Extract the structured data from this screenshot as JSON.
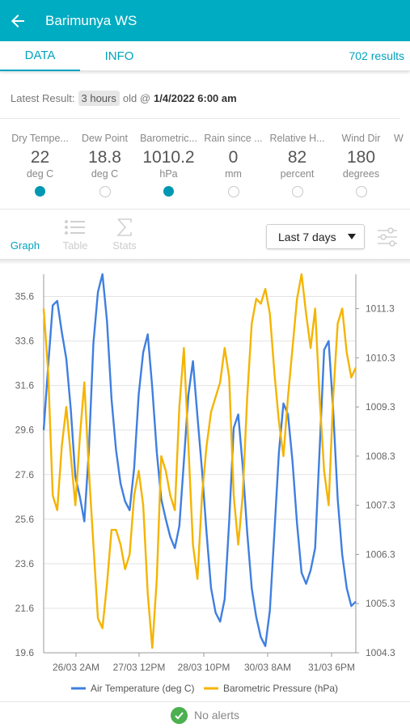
{
  "header": {
    "title": "Barimunya WS",
    "back_icon": "arrow-left-icon"
  },
  "tabs": [
    {
      "label": "DATA",
      "active": true
    },
    {
      "label": "INFO",
      "active": false
    }
  ],
  "results_count": "702 results",
  "latest": {
    "label": "Latest Result:",
    "age": "3 hours",
    "old_text": "old @",
    "datetime": "1/4/2022 6:00 am"
  },
  "variables": [
    {
      "name": "Dry Tempe...",
      "value": "22",
      "unit": "deg C",
      "selected": true
    },
    {
      "name": "Dew Point",
      "value": "18.8",
      "unit": "deg C",
      "selected": false
    },
    {
      "name": "Barometric...",
      "value": "1010.2",
      "unit": "hPa",
      "selected": true
    },
    {
      "name": "Rain since ...",
      "value": "0",
      "unit": "mm",
      "selected": false
    },
    {
      "name": "Relative H...",
      "value": "82",
      "unit": "percent",
      "selected": false
    },
    {
      "name": "Wind Dir",
      "value": "180",
      "unit": "degrees",
      "selected": false
    },
    {
      "name": "W",
      "value": "",
      "unit": "",
      "selected": false
    }
  ],
  "view_tabs": [
    {
      "label": "Graph",
      "icon": "line-chart-icon",
      "active": true
    },
    {
      "label": "Table",
      "icon": "list-icon",
      "active": false
    },
    {
      "label": "Stats",
      "icon": "sigma-icon",
      "active": false
    }
  ],
  "range_select": {
    "value": "Last 7 days"
  },
  "colors": {
    "accent": "#00acc1",
    "temp": "#3f7fe0",
    "pressure": "#f5b400",
    "ok": "#4caf50"
  },
  "chart_data": {
    "type": "line",
    "x_ticks": [
      "26/03 2AM",
      "27/03 12PM",
      "28/03 10PM",
      "30/03 8AM",
      "31/03 6PM"
    ],
    "y_left_ticks": [
      "19.6",
      "21.6",
      "23.6",
      "25.6",
      "27.6",
      "29.6",
      "31.6",
      "33.6",
      "35.6"
    ],
    "y_right_ticks": [
      "1004.3",
      "1005.3",
      "1006.3",
      "1007.3",
      "1008.3",
      "1009.3",
      "1010.3",
      "1011.3"
    ],
    "y_left_range": [
      19.6,
      36.6
    ],
    "y_right_range": [
      1004.3,
      1012.0
    ],
    "grid": true,
    "legend_position": "bottom",
    "series": [
      {
        "name": "Air Temperature (deg C)",
        "axis": "left",
        "color": "#3f7fe0",
        "values": [
          29.6,
          32.5,
          35.2,
          35.4,
          34.0,
          32.8,
          30.5,
          27.5,
          26.6,
          25.5,
          28.7,
          33.5,
          35.8,
          36.6,
          34.5,
          31.0,
          28.7,
          27.2,
          26.4,
          26.0,
          27.9,
          31.2,
          33.1,
          33.9,
          31.5,
          28.6,
          26.5,
          25.6,
          24.8,
          24.3,
          25.3,
          28.2,
          31.2,
          32.7,
          30.2,
          27.8,
          25.0,
          22.5,
          21.4,
          21.0,
          22.0,
          25.5,
          29.7,
          30.3,
          28.0,
          25.0,
          22.5,
          21.2,
          20.3,
          19.9,
          21.5,
          25.0,
          28.6,
          30.8,
          30.3,
          28.2,
          25.4,
          23.2,
          22.7,
          23.3,
          24.3,
          28.7,
          33.2,
          33.6,
          30.5,
          26.5,
          24.0,
          22.5,
          21.7,
          21.9
        ]
      },
      {
        "name": "Barometric Pressure (hPa)",
        "axis": "right",
        "color": "#f5b400",
        "values": [
          1011.3,
          1010.0,
          1007.5,
          1007.2,
          1008.5,
          1009.3,
          1008.3,
          1007.3,
          1008.7,
          1009.8,
          1008.0,
          1006.5,
          1005.0,
          1004.8,
          1005.7,
          1006.8,
          1006.8,
          1006.5,
          1006.0,
          1006.3,
          1007.5,
          1008.0,
          1007.3,
          1005.5,
          1004.4,
          1005.8,
          1008.3,
          1008.0,
          1007.5,
          1007.2,
          1009.3,
          1010.5,
          1008.5,
          1006.5,
          1005.8,
          1007.5,
          1008.5,
          1009.2,
          1009.5,
          1009.8,
          1010.5,
          1009.9,
          1007.5,
          1006.5,
          1007.5,
          1009.5,
          1011.0,
          1011.5,
          1011.4,
          1011.7,
          1011.2,
          1010.0,
          1009.0,
          1008.3,
          1009.5,
          1010.5,
          1011.5,
          1012.0,
          1011.2,
          1010.5,
          1011.3,
          1009.5,
          1008.0,
          1007.3,
          1009.5,
          1011.0,
          1011.3,
          1010.4,
          1009.9,
          1010.1
        ]
      }
    ]
  },
  "alerts": {
    "text": "No alerts",
    "icon": "check-circle-icon"
  }
}
